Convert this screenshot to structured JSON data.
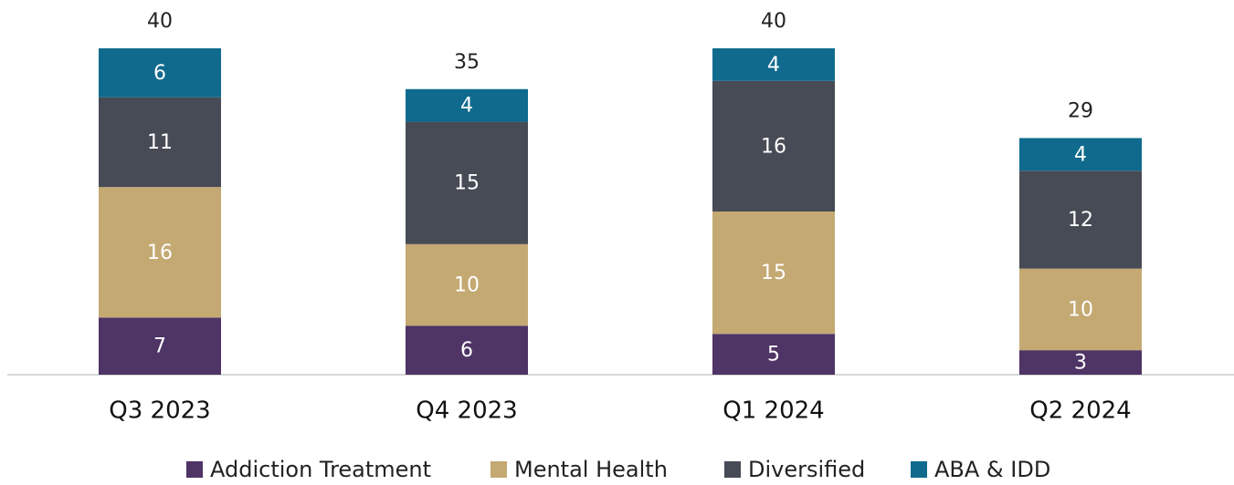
{
  "chart_data": {
    "type": "bar",
    "stacked": true,
    "categories": [
      "Q3 2023",
      "Q4 2023",
      "Q1 2024",
      "Q2 2024"
    ],
    "series": [
      {
        "name": "Addiction Treatment",
        "color": "#4f3466",
        "values": [
          7,
          6,
          5,
          3
        ]
      },
      {
        "name": "Mental Health",
        "color": "#c4a973",
        "values": [
          16,
          10,
          15,
          10
        ]
      },
      {
        "name": "Diversified",
        "color": "#474b55",
        "values": [
          11,
          15,
          16,
          12
        ]
      },
      {
        "name": "ABA & IDD",
        "color": "#0f6a8e",
        "values": [
          6,
          4,
          4,
          4
        ]
      }
    ],
    "totals": [
      40,
      35,
      40,
      29
    ]
  }
}
